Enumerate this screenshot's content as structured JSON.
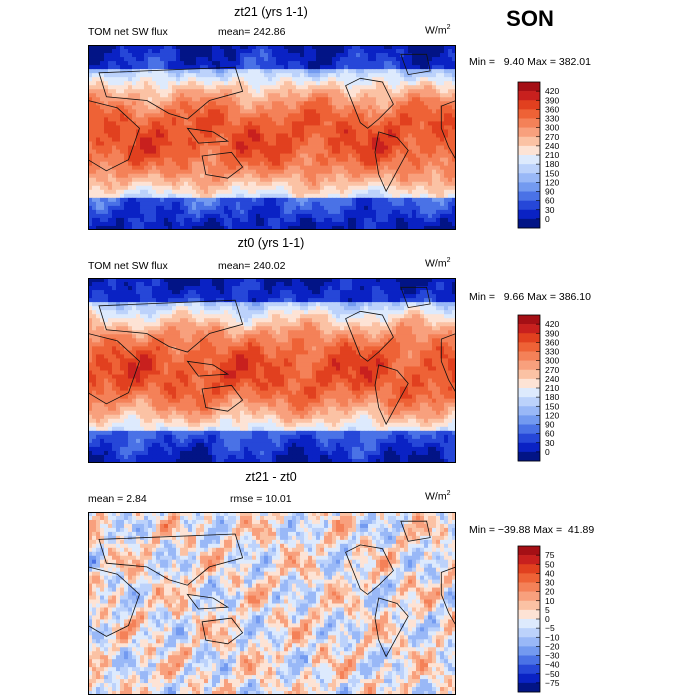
{
  "season": "SON",
  "panels": [
    {
      "title": "zt21 (yrs 1-1)",
      "stat_left": "TOM net SW flux",
      "stat_mid": "mean= 242.86",
      "units": "W/m",
      "units_sup": "2",
      "minmax": "Min =   9.40 Max = 382.01",
      "colorbar_labels": [
        "420",
        "390",
        "360",
        "330",
        "300",
        "270",
        "240",
        "210",
        "180",
        "150",
        "120",
        "90",
        "60",
        "30",
        "0"
      ],
      "colorbar_colors": [
        "#a50f15",
        "#c8201e",
        "#e1401f",
        "#ee6236",
        "#f48158",
        "#f8a07d",
        "#fbc2a4",
        "#fde3d5",
        "#ddeafd",
        "#bcd2fb",
        "#99b8f7",
        "#739af0",
        "#4a72e6",
        "#2647d8",
        "#0a22c4",
        "#021486"
      ]
    },
    {
      "title": "zt0 (yrs 1-1)",
      "stat_left": "TOM net SW flux",
      "stat_mid": "mean= 240.02",
      "units": "W/m",
      "units_sup": "2",
      "minmax": "Min =   9.66 Max = 386.10",
      "colorbar_labels": [
        "420",
        "390",
        "360",
        "330",
        "300",
        "270",
        "240",
        "210",
        "180",
        "150",
        "120",
        "90",
        "60",
        "30",
        "0"
      ],
      "colorbar_colors": [
        "#a50f15",
        "#c8201e",
        "#e1401f",
        "#ee6236",
        "#f48158",
        "#f8a07d",
        "#fbc2a4",
        "#fde3d5",
        "#ddeafd",
        "#bcd2fb",
        "#99b8f7",
        "#739af0",
        "#4a72e6",
        "#2647d8",
        "#0a22c4",
        "#021486"
      ]
    },
    {
      "title": "zt21 - zt0",
      "stat_left": "mean =    2.84",
      "stat_mid": "rmse =   10.01",
      "units": "W/m",
      "units_sup": "2",
      "minmax": "Min = −39.88 Max =  41.89",
      "colorbar_labels": [
        "75",
        "50",
        "40",
        "30",
        "20",
        "10",
        "5",
        "0",
        "−5",
        "−10",
        "−20",
        "−30",
        "−40",
        "−50",
        "−75"
      ],
      "colorbar_colors": [
        "#a50f15",
        "#c8201e",
        "#e1401f",
        "#ee6236",
        "#f48158",
        "#f8a07d",
        "#fbc2a4",
        "#fde3d5",
        "#ddeafd",
        "#bcd2fb",
        "#99b8f7",
        "#739af0",
        "#4a72e6",
        "#2647d8",
        "#0a22c4",
        "#021486"
      ]
    }
  ],
  "chart_data": [
    {
      "type": "heatmap",
      "title": "zt21 (yrs 1-1)",
      "variable": "TOM net SW flux",
      "mean": 242.86,
      "min": 9.4,
      "max": 382.01,
      "units": "W/m2",
      "contour_levels": [
        0,
        30,
        60,
        90,
        120,
        150,
        180,
        210,
        240,
        270,
        300,
        330,
        360,
        390,
        420
      ]
    },
    {
      "type": "heatmap",
      "title": "zt0 (yrs 1-1)",
      "variable": "TOM net SW flux",
      "mean": 240.02,
      "min": 9.66,
      "max": 386.1,
      "units": "W/m2",
      "contour_levels": [
        0,
        30,
        60,
        90,
        120,
        150,
        180,
        210,
        240,
        270,
        300,
        330,
        360,
        390,
        420
      ]
    },
    {
      "type": "heatmap",
      "title": "zt21 - zt0",
      "mean": 2.84,
      "rmse": 10.01,
      "min": -39.88,
      "max": 41.89,
      "units": "W/m2",
      "contour_levels": [
        -75,
        -50,
        -40,
        -30,
        -20,
        -10,
        -5,
        0,
        5,
        10,
        20,
        30,
        40,
        50,
        75
      ]
    }
  ]
}
